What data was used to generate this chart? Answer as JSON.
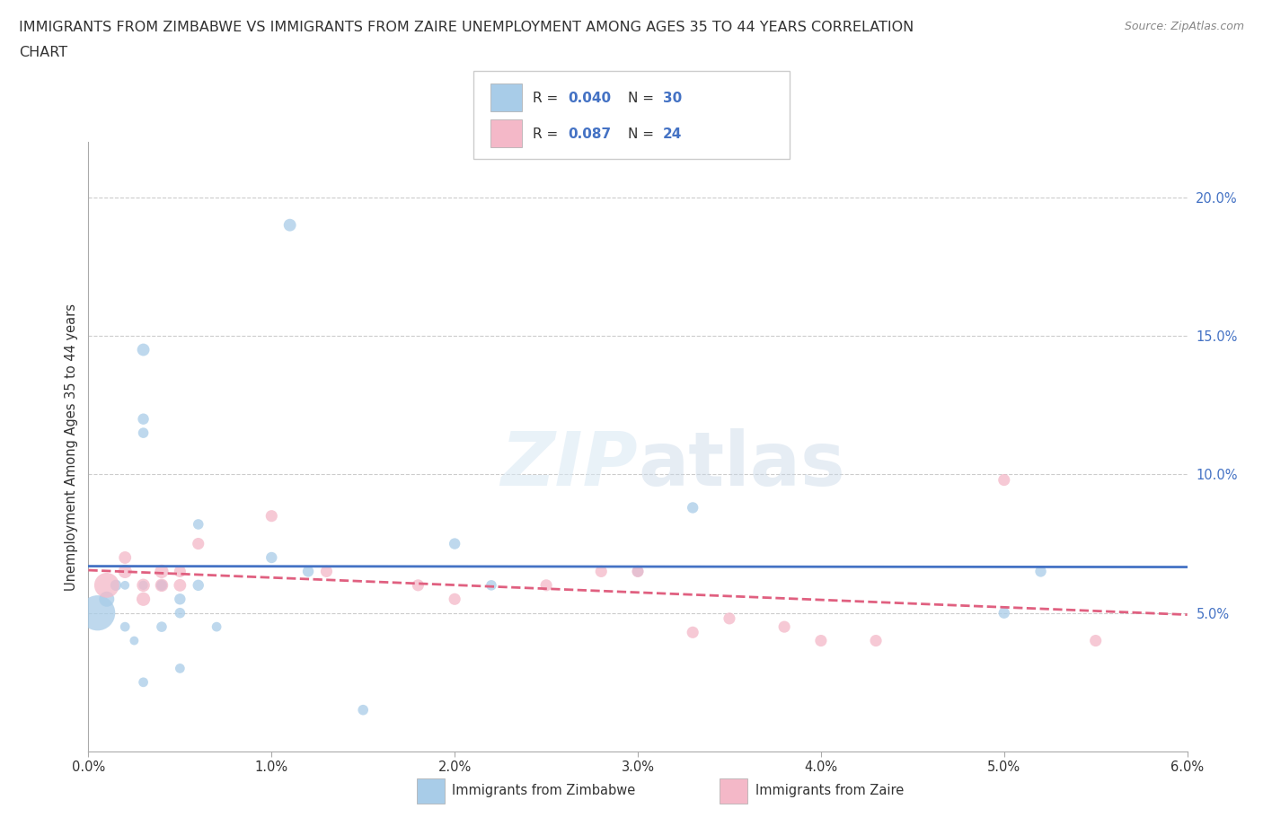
{
  "title_line1": "IMMIGRANTS FROM ZIMBABWE VS IMMIGRANTS FROM ZAIRE UNEMPLOYMENT AMONG AGES 35 TO 44 YEARS CORRELATION",
  "title_line2": "CHART",
  "source": "Source: ZipAtlas.com",
  "ylabel": "Unemployment Among Ages 35 to 44 years",
  "xlim": [
    0.0,
    0.06
  ],
  "ylim": [
    0.0,
    0.22
  ],
  "xticks": [
    0.0,
    0.01,
    0.02,
    0.03,
    0.04,
    0.05,
    0.06
  ],
  "xticklabels": [
    "0.0%",
    "1.0%",
    "2.0%",
    "3.0%",
    "4.0%",
    "5.0%",
    "6.0%"
  ],
  "yticks_right": [
    0.05,
    0.1,
    0.15,
    0.2
  ],
  "ytick_right_labels": [
    "5.0%",
    "10.0%",
    "15.0%",
    "20.0%"
  ],
  "background_color": "#ffffff",
  "legend_R1": "R = 0.040",
  "legend_N1": "N = 30",
  "legend_R2": "R = 0.087",
  "legend_N2": "N = 24",
  "color_zimbabwe": "#a8cce8",
  "color_zaire": "#f4b8c8",
  "color_trendline_zimbabwe": "#4472c4",
  "color_trendline_zaire": "#e06080",
  "color_legend_text_blue": "#4472c4",
  "gridline_color": "#cccccc",
  "zimbabwe_x": [
    0.0005,
    0.001,
    0.0015,
    0.002,
    0.002,
    0.0025,
    0.003,
    0.003,
    0.003,
    0.003,
    0.003,
    0.004,
    0.004,
    0.004,
    0.005,
    0.005,
    0.005,
    0.006,
    0.006,
    0.007,
    0.01,
    0.011,
    0.012,
    0.015,
    0.02,
    0.022,
    0.03,
    0.033,
    0.05,
    0.052
  ],
  "zimbabwe_y": [
    0.05,
    0.055,
    0.06,
    0.045,
    0.06,
    0.04,
    0.145,
    0.12,
    0.115,
    0.025,
    0.06,
    0.06,
    0.045,
    0.06,
    0.055,
    0.05,
    0.03,
    0.06,
    0.082,
    0.045,
    0.07,
    0.19,
    0.065,
    0.015,
    0.075,
    0.06,
    0.065,
    0.088,
    0.05,
    0.065
  ],
  "zimbabwe_size": [
    800,
    150,
    80,
    60,
    50,
    50,
    100,
    80,
    70,
    60,
    55,
    80,
    70,
    60,
    80,
    70,
    60,
    80,
    70,
    60,
    80,
    100,
    80,
    70,
    80,
    70,
    80,
    80,
    80,
    80
  ],
  "zaire_x": [
    0.001,
    0.002,
    0.002,
    0.003,
    0.003,
    0.004,
    0.004,
    0.005,
    0.005,
    0.006,
    0.01,
    0.013,
    0.018,
    0.02,
    0.025,
    0.028,
    0.03,
    0.033,
    0.035,
    0.038,
    0.04,
    0.043,
    0.05,
    0.055
  ],
  "zaire_y": [
    0.06,
    0.065,
    0.07,
    0.055,
    0.06,
    0.065,
    0.06,
    0.06,
    0.065,
    0.075,
    0.085,
    0.065,
    0.06,
    0.055,
    0.06,
    0.065,
    0.065,
    0.043,
    0.048,
    0.045,
    0.04,
    0.04,
    0.098,
    0.04
  ],
  "zaire_size": [
    400,
    120,
    100,
    120,
    110,
    120,
    110,
    100,
    90,
    90,
    90,
    90,
    90,
    90,
    90,
    90,
    90,
    90,
    90,
    90,
    90,
    90,
    90,
    90
  ]
}
